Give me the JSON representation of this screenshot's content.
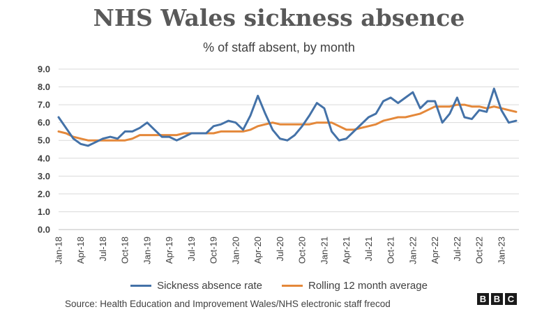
{
  "header": {
    "title": "NHS Wales sickness absence",
    "subtitle": "% of staff absent, by month"
  },
  "footer": {
    "source": "Source: Health Education and Improvement Wales/NHS electronic staff frecod",
    "logo_letters": [
      "B",
      "B",
      "C"
    ]
  },
  "colors": {
    "sickness": "#4472a8",
    "rolling": "#e4883a",
    "grid": "#d9d9d9"
  },
  "chart_data": {
    "type": "line",
    "title": "NHS Wales sickness absence",
    "subtitle": "% of staff absent, by month",
    "xlabel": "",
    "ylabel": "",
    "ylim": [
      0,
      9
    ],
    "yticks": [
      "0.0",
      "1.0",
      "2.0",
      "3.0",
      "4.0",
      "5.0",
      "6.0",
      "7.0",
      "8.0",
      "9.0"
    ],
    "grid": true,
    "legend_position": "bottom",
    "x": [
      "Jan-18",
      "Feb-18",
      "Mar-18",
      "Apr-18",
      "May-18",
      "Jun-18",
      "Jul-18",
      "Aug-18",
      "Sep-18",
      "Oct-18",
      "Nov-18",
      "Dec-18",
      "Jan-19",
      "Feb-19",
      "Mar-19",
      "Apr-19",
      "May-19",
      "Jun-19",
      "Jul-19",
      "Aug-19",
      "Sep-19",
      "Oct-19",
      "Nov-19",
      "Dec-19",
      "Jan-20",
      "Feb-20",
      "Mar-20",
      "Apr-20",
      "May-20",
      "Jun-20",
      "Jul-20",
      "Aug-20",
      "Sep-20",
      "Oct-20",
      "Nov-20",
      "Dec-20",
      "Jan-21",
      "Feb-21",
      "Mar-21",
      "Apr-21",
      "May-21",
      "Jun-21",
      "Jul-21",
      "Aug-21",
      "Sep-21",
      "Oct-21",
      "Nov-21",
      "Dec-21",
      "Jan-22",
      "Feb-22",
      "Mar-22",
      "Apr-22",
      "May-22",
      "Jun-22",
      "Jul-22",
      "Aug-22",
      "Sep-22",
      "Oct-22",
      "Nov-22",
      "Dec-22",
      "Jan-23",
      "Feb-23",
      "Mar-23"
    ],
    "xtick_labels": [
      "Jan-18",
      "Apr-18",
      "Jul-18",
      "Oct-18",
      "Jan-19",
      "Apr-19",
      "Jul-19",
      "Oct-19",
      "Jan-20",
      "Apr-20",
      "Jul-20",
      "Oct-20",
      "Jan-21",
      "Apr-21",
      "Jul-21",
      "Oct-21",
      "Jan-22",
      "Apr-22",
      "Jul-22",
      "Oct-22",
      "Jan-23"
    ],
    "series": [
      {
        "name": "Sickness absence rate",
        "values": [
          6.3,
          5.7,
          5.1,
          4.8,
          4.7,
          4.9,
          5.1,
          5.2,
          5.1,
          5.5,
          5.5,
          5.7,
          6.0,
          5.6,
          5.2,
          5.2,
          5.0,
          5.2,
          5.4,
          5.4,
          5.4,
          5.8,
          5.9,
          6.1,
          6.0,
          5.6,
          6.4,
          7.5,
          6.5,
          5.6,
          5.1,
          5.0,
          5.3,
          5.8,
          6.4,
          7.1,
          6.8,
          5.5,
          5.0,
          5.1,
          5.5,
          5.9,
          6.3,
          6.5,
          7.2,
          7.4,
          7.1,
          7.4,
          7.7,
          6.8,
          7.2,
          7.2,
          6.0,
          6.5,
          7.4,
          6.3,
          6.2,
          6.7,
          6.6,
          7.9,
          6.7,
          6.0,
          6.1
        ]
      },
      {
        "name": "Rolling 12 month average",
        "values": [
          5.5,
          5.4,
          5.2,
          5.1,
          5.0,
          5.0,
          5.0,
          5.0,
          5.0,
          5.0,
          5.1,
          5.3,
          5.3,
          5.3,
          5.3,
          5.3,
          5.3,
          5.4,
          5.4,
          5.4,
          5.4,
          5.4,
          5.5,
          5.5,
          5.5,
          5.5,
          5.6,
          5.8,
          5.9,
          6.0,
          5.9,
          5.9,
          5.9,
          5.9,
          5.9,
          6.0,
          6.0,
          6.0,
          5.8,
          5.6,
          5.6,
          5.7,
          5.8,
          5.9,
          6.1,
          6.2,
          6.3,
          6.3,
          6.4,
          6.5,
          6.7,
          6.9,
          6.9,
          6.9,
          7.0,
          7.0,
          6.9,
          6.9,
          6.8,
          6.9,
          6.8,
          6.7,
          6.6
        ]
      }
    ]
  }
}
